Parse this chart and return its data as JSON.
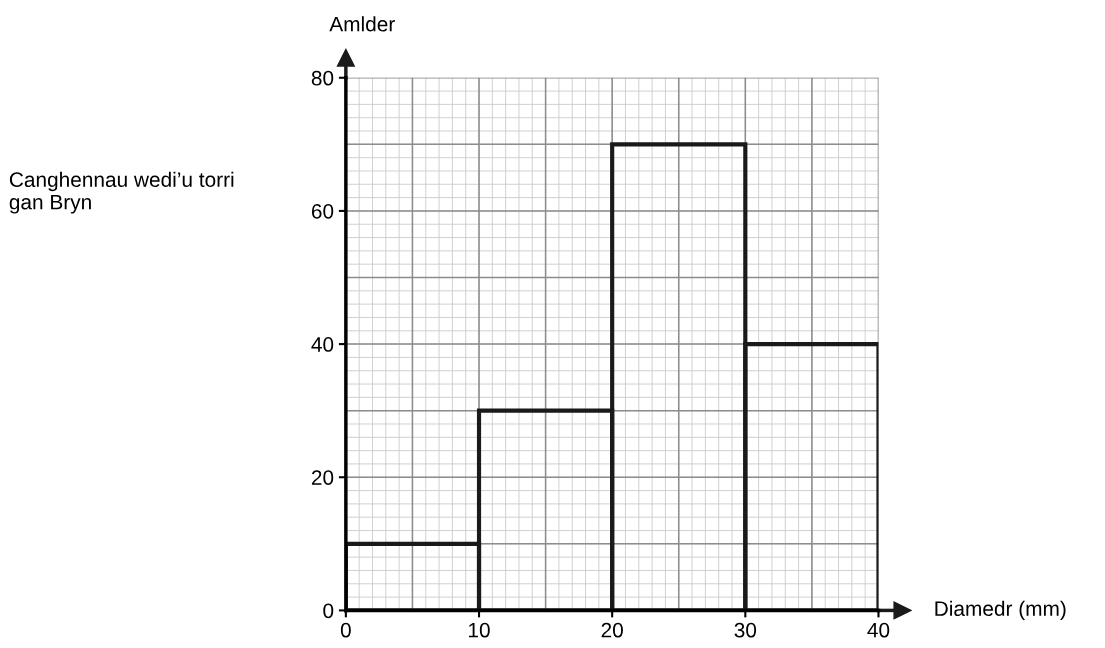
{
  "chart_data": {
    "type": "histogram",
    "bins": [
      0,
      10,
      20,
      30,
      40
    ],
    "values": [
      10,
      30,
      70,
      40
    ],
    "color": "#1a1a1a",
    "xlabel": "Diamedr (mm)",
    "ylabel": "Amlder",
    "annotations": [
      "Canghennau wedi’u torri\ngan Bryn"
    ],
    "xlim": [
      0,
      40
    ],
    "xticks": [
      0,
      10,
      20,
      30,
      40
    ],
    "ylim": [
      0,
      80
    ],
    "yticks": [
      0,
      20,
      40,
      60,
      80
    ],
    "grid": true
  }
}
